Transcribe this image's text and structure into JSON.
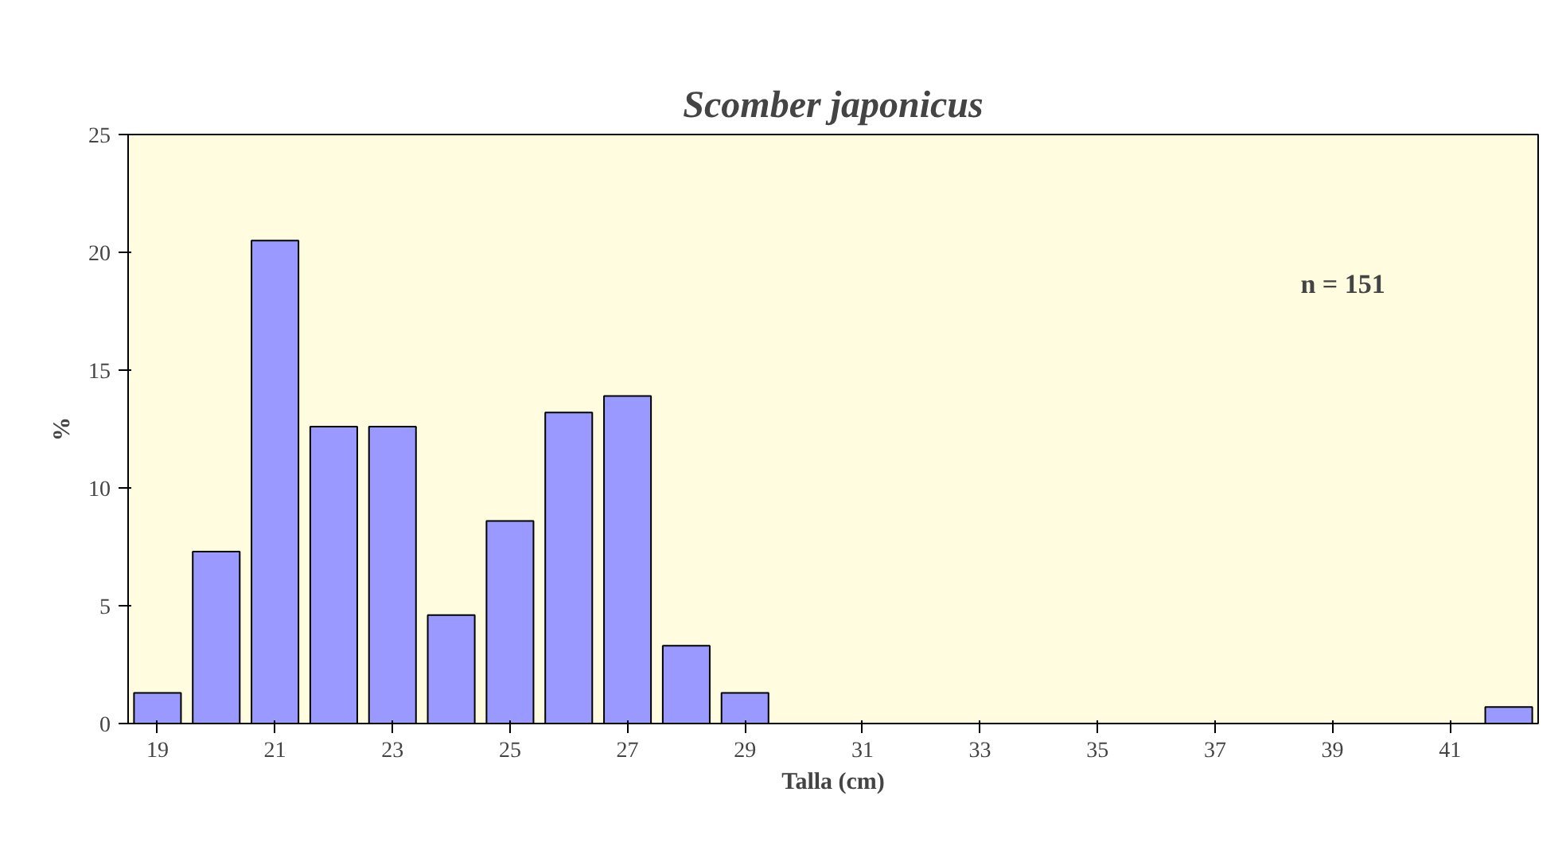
{
  "chart_data": {
    "type": "bar",
    "title": "Scomber japonicus",
    "xlabel": "Talla (cm)",
    "ylabel": "%",
    "categories": [
      "19",
      null,
      "21",
      null,
      "23",
      null,
      "25",
      null,
      "27",
      null,
      "29",
      null,
      "31",
      null,
      "33",
      null,
      "35",
      null,
      "37",
      null,
      "39",
      null,
      "41",
      null
    ],
    "values": [
      1.3,
      7.3,
      20.5,
      12.6,
      12.6,
      4.6,
      8.6,
      13.2,
      13.9,
      3.3,
      1.3,
      null,
      null,
      null,
      null,
      null,
      null,
      null,
      null,
      null,
      null,
      null,
      null,
      0.7
    ],
    "color": "#9999ff",
    "ylim": [
      0,
      25
    ],
    "yticks": [
      0,
      5,
      10,
      15,
      20,
      25
    ],
    "grid": false,
    "annotations": [
      "n = 151"
    ]
  }
}
